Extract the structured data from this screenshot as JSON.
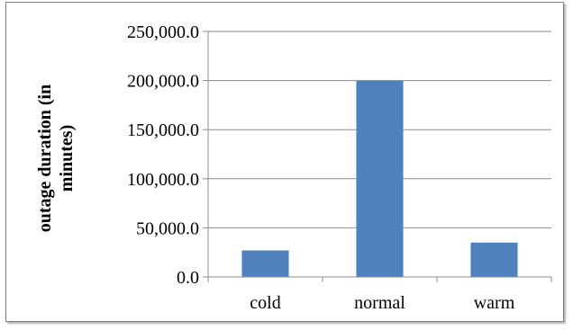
{
  "chart_data": {
    "type": "bar",
    "categories": [
      "cold",
      "normal",
      "warm"
    ],
    "values": [
      27000,
      200000,
      35000
    ],
    "title": "",
    "xlabel": "",
    "ylabel_lines": [
      "outage duration  (in",
      "minutes)"
    ],
    "ylim": [
      0,
      250000
    ],
    "y_ticks": [
      0,
      50000,
      100000,
      150000,
      200000,
      250000
    ],
    "y_tick_labels": [
      "0.0",
      "50,000.0",
      "100,000.0",
      "150,000.0",
      "200,000.0",
      "250,000.0"
    ],
    "grid": true,
    "legend": "none",
    "bar_color": "#4f81bd",
    "grid_color": "#8c8c8c"
  }
}
